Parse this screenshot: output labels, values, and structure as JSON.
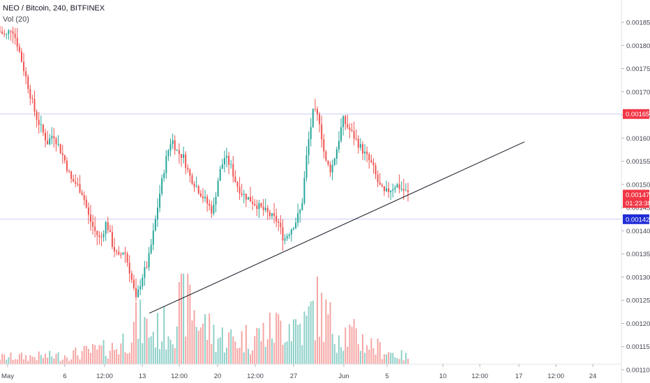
{
  "header": {
    "title": "NEO / Bitcoin, 240, BITFINEX",
    "volume_label": "Vol (20)"
  },
  "colors": {
    "up": "#26a69a",
    "down": "#ef5350",
    "up_volume": "#8fd0c8",
    "down_volume": "#f5a6a4",
    "trendline": "#131722",
    "price_tag_red": "#f23645",
    "price_tag_blue": "#1e2cd6",
    "hline": "#c9cdf5"
  },
  "chart_data": {
    "type": "candlestick",
    "symbol": "NEO / Bitcoin",
    "timeframe": "240",
    "exchange": "BITFINEX",
    "y_axis": {
      "ticks": [
        "0.001850",
        "0.001800",
        "0.001750",
        "0.001700",
        "0.001650",
        "0.001600",
        "0.001550",
        "0.001500",
        "0.001450",
        "0.001400",
        "0.001350",
        "0.001300",
        "0.001250",
        "0.001200",
        "0.001150",
        "0.001100"
      ],
      "range": [
        0.00109,
        0.00188
      ]
    },
    "x_axis": {
      "ticks": [
        "May",
        "6",
        "12:00",
        "13",
        "12:00",
        "20",
        "12:00",
        "27",
        "Jun",
        "5",
        "10",
        "12:00",
        "17",
        "12:00",
        "24"
      ]
    },
    "price_tags": [
      {
        "label": "0.001652",
        "price": 0.001652,
        "style": "red",
        "hline": true
      },
      {
        "label": "0.001478",
        "price": 0.001478,
        "style": "red",
        "hline": false
      },
      {
        "label": "01:23:38",
        "price": 0.00146,
        "style": "red",
        "hline": false
      },
      {
        "label": "0.001425",
        "price": 0.001425,
        "style": "blue",
        "hline": true
      }
    ],
    "trendline": {
      "from": [
        0.0,
        0.001222
      ],
      "to": [
        1.1,
        0.001592
      ]
    },
    "price_path": [
      [
        0.0,
        0.00183
      ],
      [
        0.03,
        0.00182
      ],
      [
        0.06,
        0.00184
      ],
      [
        0.09,
        0.0018
      ],
      [
        0.12,
        0.00175
      ],
      [
        0.15,
        0.0017
      ],
      [
        0.18,
        0.00165
      ],
      [
        0.21,
        0.00162
      ],
      [
        0.24,
        0.00159
      ],
      [
        0.27,
        0.00161
      ],
      [
        0.3,
        0.00158
      ],
      [
        0.33,
        0.00155
      ],
      [
        0.36,
        0.00151
      ],
      [
        0.39,
        0.0015
      ],
      [
        0.42,
        0.00148
      ],
      [
        0.45,
        0.00143
      ],
      [
        0.48,
        0.0014
      ],
      [
        0.51,
        0.00138
      ],
      [
        0.54,
        0.00142
      ],
      [
        0.57,
        0.00137
      ],
      [
        0.6,
        0.00134
      ],
      [
        0.63,
        0.00136
      ],
      [
        0.66,
        0.00131
      ],
      [
        0.69,
        0.00125
      ],
      [
        0.72,
        0.0013
      ],
      [
        0.75,
        0.00133
      ],
      [
        0.78,
        0.0014
      ],
      [
        0.81,
        0.00148
      ],
      [
        0.84,
        0.00155
      ],
      [
        0.87,
        0.0016
      ],
      [
        0.9,
        0.00157
      ],
      [
        0.93,
        0.00156
      ],
      [
        0.96,
        0.00152
      ],
      [
        0.99,
        0.0015
      ],
      [
        1.02,
        0.00148
      ],
      [
        1.05,
        0.00146
      ],
      [
        1.08,
        0.00144
      ],
      [
        1.11,
        0.00152
      ],
      [
        1.14,
        0.00156
      ],
      [
        1.17,
        0.00154
      ],
      [
        1.2,
        0.0015
      ],
      [
        1.23,
        0.00148
      ],
      [
        1.26,
        0.00147
      ],
      [
        1.29,
        0.00146
      ],
      [
        1.32,
        0.00145
      ],
      [
        1.35,
        0.00144
      ],
      [
        1.38,
        0.00143
      ],
      [
        1.41,
        0.00142
      ],
      [
        1.44,
        0.00138
      ],
      [
        1.47,
        0.0014
      ],
      [
        1.5,
        0.00142
      ],
      [
        1.53,
        0.00145
      ],
      [
        1.56,
        0.00158
      ],
      [
        1.59,
        0.00166
      ],
      [
        1.62,
        0.00164
      ],
      [
        1.65,
        0.00155
      ],
      [
        1.68,
        0.00153
      ],
      [
        1.71,
        0.00158
      ],
      [
        1.74,
        0.00164
      ],
      [
        1.77,
        0.00162
      ],
      [
        1.8,
        0.0016
      ],
      [
        1.83,
        0.00158
      ],
      [
        1.86,
        0.00156
      ],
      [
        1.89,
        0.00154
      ],
      [
        1.92,
        0.0015
      ],
      [
        1.95,
        0.00148
      ],
      [
        1.98,
        0.00149
      ],
      [
        2.01,
        0.0015
      ],
      [
        2.04,
        0.00149
      ],
      [
        2.07,
        0.00148
      ]
    ],
    "volume_path": [
      [
        0.0,
        0.001
      ],
      [
        0.3,
        0.0012
      ],
      [
        0.5,
        0.002
      ],
      [
        0.6,
        0.0025
      ],
      [
        0.7,
        0.006
      ],
      [
        0.78,
        0.0045
      ],
      [
        0.86,
        0.0055
      ],
      [
        0.95,
        0.01
      ],
      [
        1.0,
        0.0065
      ],
      [
        1.1,
        0.004
      ],
      [
        1.2,
        0.0035
      ],
      [
        1.35,
        0.0045
      ],
      [
        1.45,
        0.006
      ],
      [
        1.55,
        0.0055
      ],
      [
        1.6,
        0.0085
      ],
      [
        1.7,
        0.005
      ],
      [
        1.8,
        0.004
      ],
      [
        1.9,
        0.0025
      ],
      [
        2.0,
        0.0015
      ],
      [
        2.07,
        0.001
      ]
    ]
  }
}
